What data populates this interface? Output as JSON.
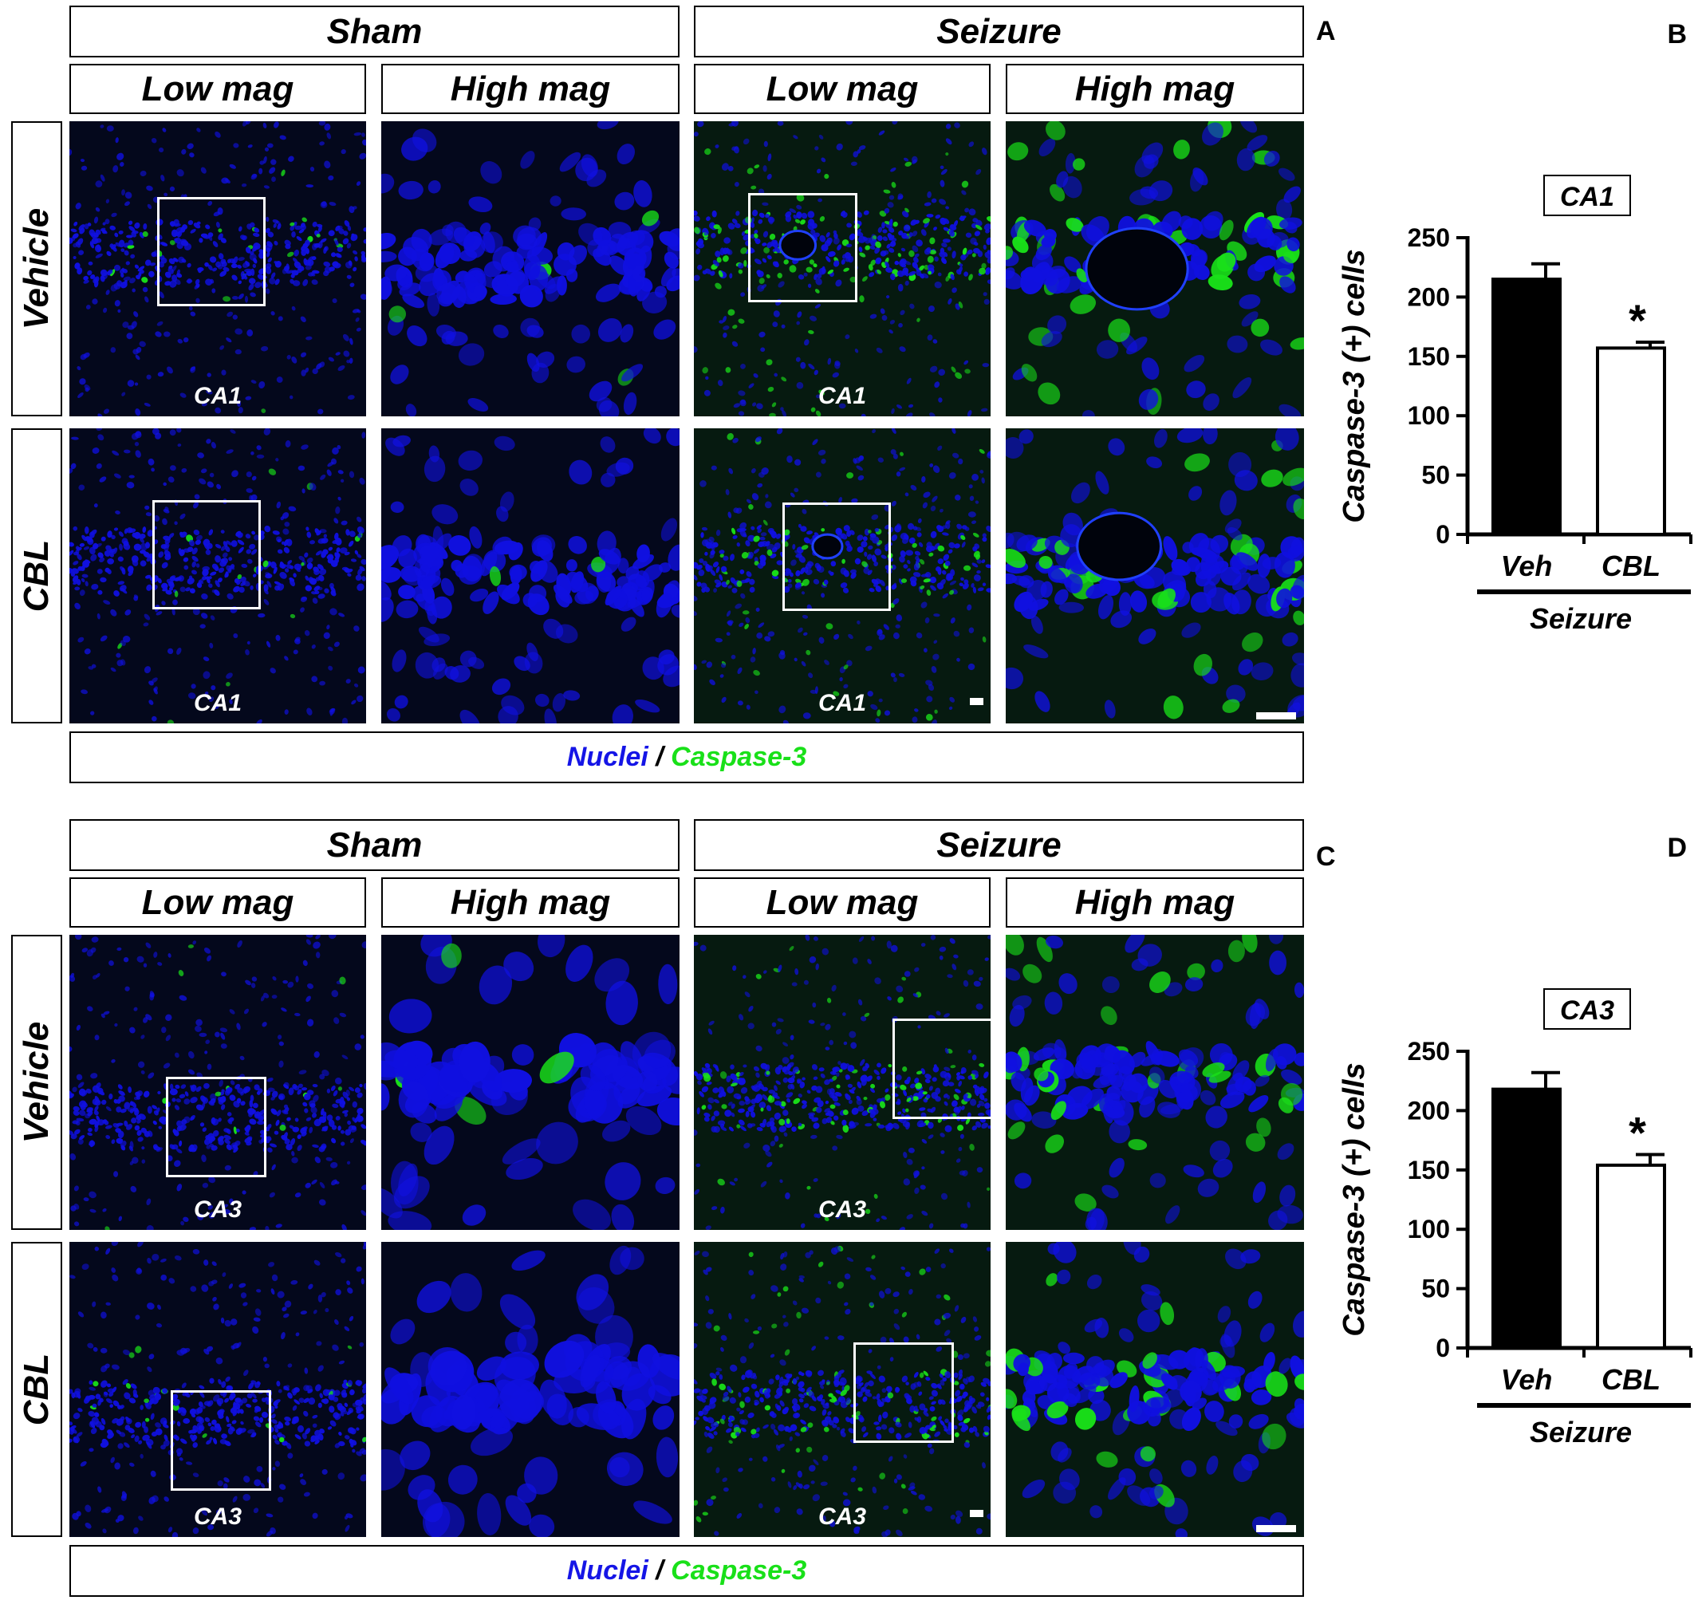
{
  "figureA": {
    "letter": "A",
    "groups": [
      "Sham",
      "Seizure"
    ],
    "mags": [
      "Low mag",
      "High mag",
      "Low mag",
      "High mag"
    ],
    "rows": [
      "Vehicle",
      "CBL"
    ],
    "region": "CA1",
    "legend": {
      "a": "Nuclei",
      "sep": " / ",
      "b": "Caspase-3"
    }
  },
  "figureC": {
    "letter": "C",
    "groups": [
      "Sham",
      "Seizure"
    ],
    "mags": [
      "Low mag",
      "High mag",
      "Low mag",
      "High mag"
    ],
    "rows": [
      "Vehicle",
      "CBL"
    ],
    "region": "CA3",
    "legend": {
      "a": "Nuclei",
      "sep": " / ",
      "b": "Caspase-3"
    }
  },
  "colors": {
    "nuclei": "#1010e0",
    "caspase": "#19e019",
    "bar_veh": "#000000",
    "bar_cbl": "#ffffff"
  },
  "chart_data": [
    {
      "type": "bar",
      "letter": "B",
      "title": "CA1",
      "categories": [
        "Veh",
        "CBL"
      ],
      "values": [
        215,
        157
      ],
      "errors": [
        13,
        5
      ],
      "significance": [
        "",
        "*"
      ],
      "ylabel": "Caspase-3 (+) cells",
      "ylim": [
        0,
        250
      ],
      "yticks": [
        0,
        50,
        100,
        150,
        200,
        250
      ],
      "group_label": "Seizure"
    },
    {
      "type": "bar",
      "letter": "D",
      "title": "CA3",
      "categories": [
        "Veh",
        "CBL"
      ],
      "values": [
        218,
        154
      ],
      "errors": [
        14,
        9
      ],
      "significance": [
        "",
        "*"
      ],
      "ylabel": "Caspase-3 (+) cells",
      "ylim": [
        0,
        250
      ],
      "yticks": [
        0,
        50,
        100,
        150,
        200,
        250
      ],
      "group_label": "Seizure"
    }
  ]
}
